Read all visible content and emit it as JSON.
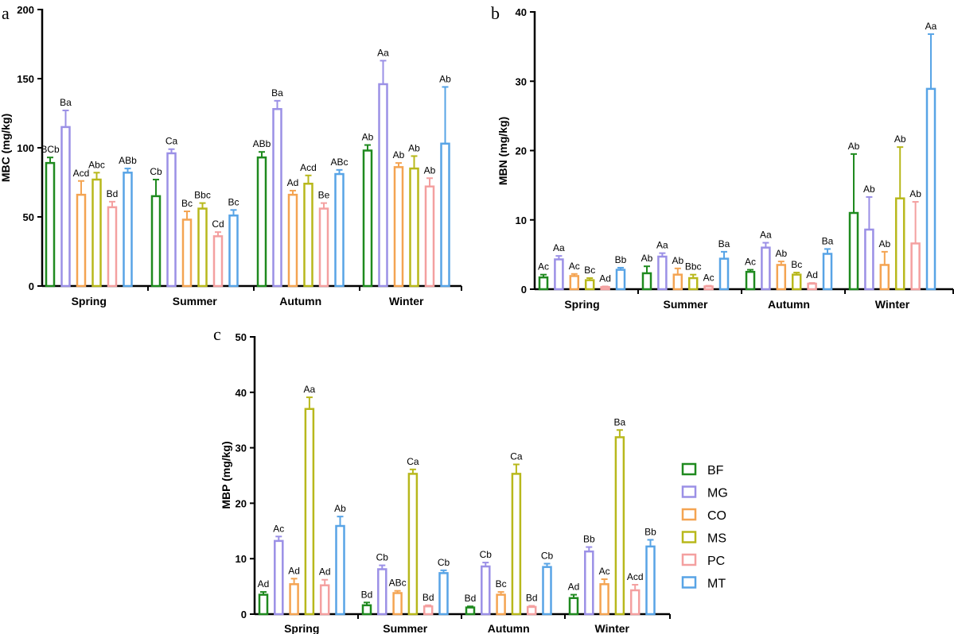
{
  "colors": {
    "BF": "#1f8a1f",
    "MG": "#9b90e6",
    "CO": "#f4a452",
    "MS": "#b8b81c",
    "PC": "#f4a0a0",
    "MT": "#58a4e6"
  },
  "legend": [
    {
      "key": "BF",
      "label": "BF"
    },
    {
      "key": "MG",
      "label": "MG"
    },
    {
      "key": "CO",
      "label": "CO"
    },
    {
      "key": "MS",
      "label": "MS"
    },
    {
      "key": "PC",
      "label": "PC"
    },
    {
      "key": "MT",
      "label": "MT"
    }
  ],
  "chart_data": [
    {
      "panel": "a",
      "type": "bar",
      "ylabel": "MBC (mg/kg)",
      "ylim": [
        0,
        200
      ],
      "yticks": [
        0,
        50,
        100,
        150,
        200
      ],
      "categories": [
        "Spring",
        "Summer",
        "Autumn",
        "Winter"
      ],
      "series": [
        {
          "name": "BF",
          "values": [
            89,
            65,
            93,
            98
          ],
          "errors": [
            4,
            12,
            4,
            4
          ],
          "labels": [
            "BCb",
            "Cb",
            "ABb",
            "Ab"
          ]
        },
        {
          "name": "MG",
          "values": [
            115,
            96,
            128,
            146
          ],
          "errors": [
            12,
            3,
            6,
            17
          ],
          "labels": [
            "Ba",
            "Ca",
            "Ba",
            "Aa"
          ]
        },
        {
          "name": "CO",
          "values": [
            66,
            48,
            66,
            86
          ],
          "errors": [
            10,
            6,
            3,
            3
          ],
          "labels": [
            "Acd",
            "Bc",
            "Ad",
            "Ab"
          ]
        },
        {
          "name": "MS",
          "values": [
            77,
            56,
            74,
            85
          ],
          "errors": [
            5,
            4,
            6,
            9
          ],
          "labels": [
            "Abc",
            "Bbc",
            "Acd",
            "Ab"
          ]
        },
        {
          "name": "PC",
          "values": [
            57,
            36,
            56,
            72
          ],
          "errors": [
            4,
            3,
            4,
            6
          ],
          "labels": [
            "Bd",
            "Cd",
            "Be",
            "Ab"
          ]
        },
        {
          "name": "MT",
          "values": [
            82,
            51,
            81,
            103
          ],
          "errors": [
            3,
            4,
            3,
            41
          ],
          "labels": [
            "ABb",
            "Bc",
            "ABc",
            "Ab"
          ]
        }
      ]
    },
    {
      "panel": "b",
      "type": "bar",
      "ylabel": "MBN (mg/kg)",
      "ylim": [
        0,
        40
      ],
      "yticks": [
        0,
        10,
        20,
        30,
        40
      ],
      "categories": [
        "Spring",
        "Summer",
        "Autumn",
        "Winter"
      ],
      "series": [
        {
          "name": "BF",
          "values": [
            1.7,
            2.3,
            2.5,
            11.0
          ],
          "errors": [
            0.4,
            1.0,
            0.3,
            8.5
          ],
          "labels": [
            "Ac",
            "Ab",
            "Ac",
            "Ab"
          ]
        },
        {
          "name": "MG",
          "values": [
            4.3,
            4.7,
            6.0,
            8.6
          ],
          "errors": [
            0.5,
            0.5,
            0.7,
            4.7
          ],
          "labels": [
            "Aa",
            "Aa",
            "Aa",
            "Ab"
          ]
        },
        {
          "name": "CO",
          "values": [
            1.9,
            2.1,
            3.5,
            3.5
          ],
          "errors": [
            0.3,
            0.9,
            0.5,
            1.9
          ],
          "labels": [
            "Ac",
            "Ab",
            "Ab",
            "Ab"
          ]
        },
        {
          "name": "MS",
          "values": [
            1.3,
            1.6,
            2.1,
            13.1
          ],
          "errors": [
            0.3,
            0.5,
            0.3,
            7.4
          ],
          "labels": [
            "Bc",
            "Bbc",
            "Bc",
            "Ab"
          ]
        },
        {
          "name": "PC",
          "values": [
            0.3,
            0.4,
            0.8,
            6.6
          ],
          "errors": [
            0.1,
            0.1,
            0.1,
            6.0
          ],
          "labels": [
            "Ad",
            "Ac",
            "Ad",
            "Ab"
          ]
        },
        {
          "name": "MT",
          "values": [
            2.8,
            4.4,
            5.1,
            28.9
          ],
          "errors": [
            0.3,
            1.0,
            0.7,
            7.9
          ],
          "labels": [
            "Bb",
            "Ba",
            "Ba",
            "Aa"
          ]
        }
      ]
    },
    {
      "panel": "c",
      "type": "bar",
      "ylabel": "MBP (mg/kg)",
      "ylim": [
        0,
        50
      ],
      "yticks": [
        0,
        10,
        20,
        30,
        40,
        50
      ],
      "categories": [
        "Spring",
        "Summer",
        "Autumn",
        "Winter"
      ],
      "series": [
        {
          "name": "BF",
          "values": [
            3.5,
            1.6,
            1.2,
            2.9
          ],
          "errors": [
            0.5,
            0.5,
            0.2,
            0.6
          ],
          "labels": [
            "Ad",
            "Bd",
            "Bd",
            "Ad"
          ]
        },
        {
          "name": "MG",
          "values": [
            13.2,
            8.1,
            8.6,
            11.3
          ],
          "errors": [
            0.8,
            0.7,
            0.7,
            0.8
          ],
          "labels": [
            "Ac",
            "Cb",
            "Cb",
            "Bb"
          ]
        },
        {
          "name": "CO",
          "values": [
            5.4,
            3.8,
            3.5,
            5.4
          ],
          "errors": [
            1.0,
            0.4,
            0.5,
            0.9
          ],
          "labels": [
            "Ad",
            "ABc",
            "Bc",
            "Ac"
          ]
        },
        {
          "name": "MS",
          "values": [
            37.0,
            25.3,
            25.3,
            31.9
          ],
          "errors": [
            2.1,
            0.8,
            1.7,
            1.3
          ],
          "labels": [
            "Aa",
            "Ca",
            "Ca",
            "Ba"
          ]
        },
        {
          "name": "PC",
          "values": [
            5.2,
            1.4,
            1.3,
            4.3
          ],
          "errors": [
            1.0,
            0.2,
            0.2,
            1.0
          ],
          "labels": [
            "Ad",
            "Bd",
            "Bd",
            "Acd"
          ]
        },
        {
          "name": "MT",
          "values": [
            15.9,
            7.4,
            8.5,
            12.2
          ],
          "errors": [
            1.7,
            0.5,
            0.6,
            1.2
          ],
          "labels": [
            "Ab",
            "Cb",
            "Cb",
            "Bb"
          ]
        }
      ]
    }
  ]
}
